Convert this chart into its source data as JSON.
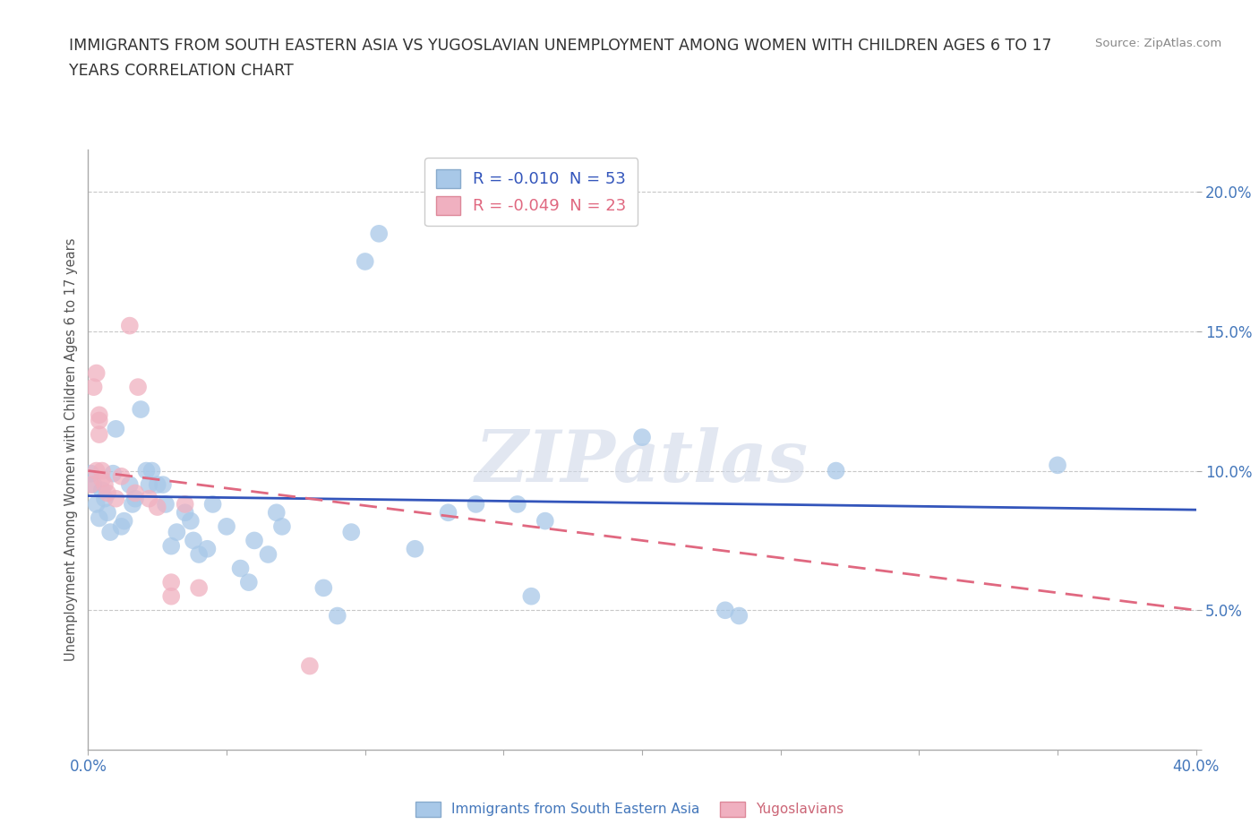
{
  "title_line1": "IMMIGRANTS FROM SOUTH EASTERN ASIA VS YUGOSLAVIAN UNEMPLOYMENT AMONG WOMEN WITH CHILDREN AGES 6 TO 17",
  "title_line2": "YEARS CORRELATION CHART",
  "source_text": "Source: ZipAtlas.com",
  "ylabel": "Unemployment Among Women with Children Ages 6 to 17 years",
  "xlim": [
    0.0,
    0.4
  ],
  "ylim": [
    0.0,
    0.215
  ],
  "xticks": [
    0.0,
    0.05,
    0.1,
    0.15,
    0.2,
    0.25,
    0.3,
    0.35,
    0.4
  ],
  "yticks": [
    0.0,
    0.05,
    0.1,
    0.15,
    0.2
  ],
  "grid_color": "#c8c8c8",
  "background_color": "#ffffff",
  "blue_color": "#a8c8e8",
  "pink_color": "#f0b0c0",
  "blue_line_color": "#3355bb",
  "pink_line_color": "#e06880",
  "R_blue": -0.01,
  "N_blue": 53,
  "R_pink": -0.049,
  "N_pink": 23,
  "legend_label_blue": "Immigrants from South Eastern Asia",
  "legend_label_pink": "Yugoslavians",
  "watermark": "ZIPatlas",
  "blue_points": [
    [
      0.001,
      0.099
    ],
    [
      0.002,
      0.095
    ],
    [
      0.003,
      0.088
    ],
    [
      0.004,
      0.083
    ],
    [
      0.005,
      0.093
    ],
    [
      0.006,
      0.09
    ],
    [
      0.007,
      0.085
    ],
    [
      0.008,
      0.078
    ],
    [
      0.009,
      0.099
    ],
    [
      0.01,
      0.115
    ],
    [
      0.012,
      0.08
    ],
    [
      0.013,
      0.082
    ],
    [
      0.015,
      0.095
    ],
    [
      0.016,
      0.088
    ],
    [
      0.017,
      0.09
    ],
    [
      0.019,
      0.122
    ],
    [
      0.021,
      0.1
    ],
    [
      0.022,
      0.095
    ],
    [
      0.023,
      0.1
    ],
    [
      0.025,
      0.095
    ],
    [
      0.027,
      0.095
    ],
    [
      0.028,
      0.088
    ],
    [
      0.03,
      0.073
    ],
    [
      0.032,
      0.078
    ],
    [
      0.035,
      0.085
    ],
    [
      0.037,
      0.082
    ],
    [
      0.038,
      0.075
    ],
    [
      0.04,
      0.07
    ],
    [
      0.043,
      0.072
    ],
    [
      0.045,
      0.088
    ],
    [
      0.05,
      0.08
    ],
    [
      0.055,
      0.065
    ],
    [
      0.058,
      0.06
    ],
    [
      0.06,
      0.075
    ],
    [
      0.065,
      0.07
    ],
    [
      0.068,
      0.085
    ],
    [
      0.07,
      0.08
    ],
    [
      0.085,
      0.058
    ],
    [
      0.09,
      0.048
    ],
    [
      0.095,
      0.078
    ],
    [
      0.1,
      0.175
    ],
    [
      0.105,
      0.185
    ],
    [
      0.118,
      0.072
    ],
    [
      0.13,
      0.085
    ],
    [
      0.14,
      0.088
    ],
    [
      0.155,
      0.088
    ],
    [
      0.16,
      0.055
    ],
    [
      0.165,
      0.082
    ],
    [
      0.2,
      0.112
    ],
    [
      0.23,
      0.05
    ],
    [
      0.235,
      0.048
    ],
    [
      0.27,
      0.1
    ],
    [
      0.35,
      0.102
    ]
  ],
  "pink_points": [
    [
      0.001,
      0.095
    ],
    [
      0.002,
      0.13
    ],
    [
      0.003,
      0.135
    ],
    [
      0.003,
      0.1
    ],
    [
      0.004,
      0.12
    ],
    [
      0.004,
      0.118
    ],
    [
      0.004,
      0.113
    ],
    [
      0.005,
      0.1
    ],
    [
      0.005,
      0.097
    ],
    [
      0.006,
      0.095
    ],
    [
      0.007,
      0.092
    ],
    [
      0.01,
      0.09
    ],
    [
      0.012,
      0.098
    ],
    [
      0.015,
      0.152
    ],
    [
      0.017,
      0.092
    ],
    [
      0.018,
      0.13
    ],
    [
      0.022,
      0.09
    ],
    [
      0.025,
      0.087
    ],
    [
      0.03,
      0.055
    ],
    [
      0.03,
      0.06
    ],
    [
      0.035,
      0.088
    ],
    [
      0.04,
      0.058
    ],
    [
      0.08,
      0.03
    ]
  ],
  "blue_line_x": [
    0.0,
    0.4
  ],
  "blue_line_y": [
    0.091,
    0.086
  ],
  "pink_line_x": [
    0.0,
    0.4
  ],
  "pink_line_y": [
    0.1,
    0.05
  ]
}
